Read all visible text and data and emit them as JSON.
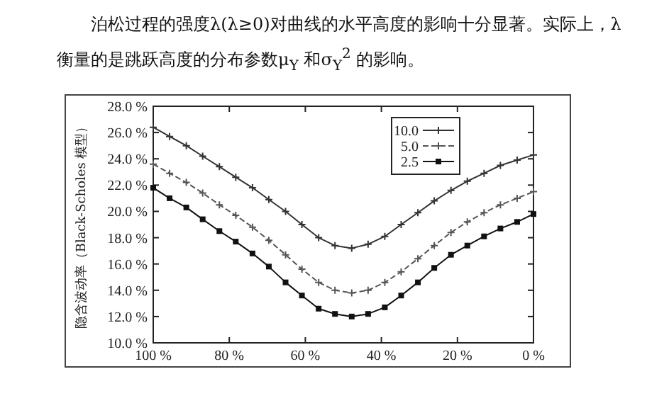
{
  "chart_data": {
    "type": "line",
    "title": "泊松过程的强度λ(λ≥0)对曲线的水平高度的影响十分显著。实际上，λ 衡量的是跳跃高度的分布参数μ$_{Y}$ 和σ$_{Y}$$^{2}$ 的影响。",
    "ylabel": "隐含波动率（Black-Scholes 模型）",
    "x": [
      100,
      95.7,
      91.3,
      87.0,
      82.6,
      78.3,
      73.9,
      69.6,
      65.2,
      60.9,
      56.5,
      52.2,
      47.8,
      43.5,
      39.1,
      34.8,
      30.4,
      26.1,
      21.7,
      17.4,
      13.0,
      8.7,
      4.3,
      0
    ],
    "series": [
      {
        "name": "10.0",
        "color": "#333333",
        "marker": "cross",
        "line_style": "solid",
        "values": [
          26.4,
          25.7,
          25.0,
          24.2,
          23.4,
          22.6,
          21.8,
          20.9,
          20.0,
          19.0,
          18.0,
          17.4,
          17.2,
          17.5,
          18.1,
          19.0,
          19.9,
          20.8,
          21.6,
          22.3,
          22.9,
          23.5,
          23.9,
          24.3
        ]
      },
      {
        "name": "5.0",
        "color": "#555555",
        "marker": "cross",
        "line_style": "dashed",
        "values": [
          23.6,
          22.9,
          22.2,
          21.4,
          20.5,
          19.7,
          18.8,
          17.8,
          16.7,
          15.6,
          14.6,
          14.0,
          13.8,
          14.0,
          14.6,
          15.4,
          16.4,
          17.4,
          18.4,
          19.2,
          19.9,
          20.5,
          21.0,
          21.5
        ]
      },
      {
        "name": "2.5",
        "color": "#111111",
        "marker": "square",
        "line_style": "solid",
        "values": [
          21.8,
          21.0,
          20.3,
          19.4,
          18.5,
          17.7,
          16.8,
          15.8,
          14.6,
          13.6,
          12.6,
          12.2,
          12.0,
          12.2,
          12.7,
          13.6,
          14.6,
          15.7,
          16.7,
          17.4,
          18.1,
          18.7,
          19.2,
          19.8
        ]
      }
    ],
    "xlim": [
      100,
      0
    ],
    "xticks": [
      {
        "value": 100,
        "label": "100 %"
      },
      {
        "value": 80,
        "label": "80 %"
      },
      {
        "value": 60,
        "label": "60 %"
      },
      {
        "value": 40,
        "label": "40 %"
      },
      {
        "value": 20,
        "label": "20 %"
      },
      {
        "value": 0,
        "label": "0 %"
      }
    ],
    "ylim": [
      10,
      28
    ],
    "yticks": [
      {
        "value": 10,
        "label": "10.0 %"
      },
      {
        "value": 12,
        "label": "12.0 %"
      },
      {
        "value": 14,
        "label": "14.0 %"
      },
      {
        "value": 16,
        "label": "16.0 %"
      },
      {
        "value": 18,
        "label": "18.0 %"
      },
      {
        "value": 20,
        "label": "20.0 %"
      },
      {
        "value": 22,
        "label": "22.0 %"
      },
      {
        "value": 24,
        "label": "24.0 %"
      },
      {
        "value": 26,
        "label": "26.0 %"
      },
      {
        "value": 28,
        "label": "28.0 %"
      }
    ],
    "grid": false,
    "legend": "top right"
  }
}
